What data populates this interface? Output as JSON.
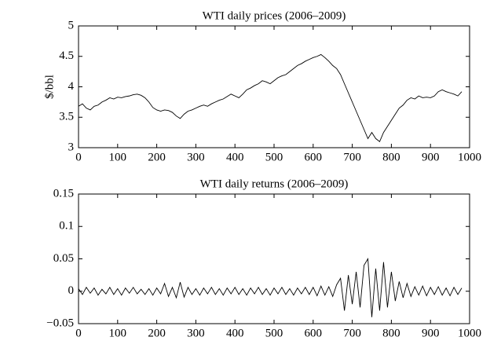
{
  "chart_data": [
    {
      "type": "line",
      "title": "WTI daily prices (2006–2009)",
      "ylabel": "$/bbl",
      "color": "#000000",
      "x": [
        0,
        10,
        20,
        30,
        40,
        50,
        60,
        70,
        80,
        90,
        100,
        110,
        120,
        130,
        140,
        150,
        160,
        170,
        180,
        190,
        200,
        210,
        220,
        230,
        240,
        250,
        260,
        270,
        280,
        290,
        300,
        310,
        320,
        330,
        340,
        350,
        360,
        370,
        380,
        390,
        400,
        410,
        420,
        430,
        440,
        450,
        460,
        470,
        480,
        490,
        500,
        510,
        520,
        530,
        540,
        550,
        560,
        570,
        580,
        590,
        600,
        610,
        620,
        630,
        640,
        650,
        660,
        670,
        680,
        690,
        700,
        710,
        720,
        730,
        740,
        750,
        760,
        770,
        780,
        790,
        800,
        810,
        820,
        830,
        840,
        850,
        860,
        870,
        880,
        890,
        900,
        910,
        920,
        930,
        940,
        950,
        960,
        970,
        980
      ],
      "values": [
        3.68,
        3.72,
        3.65,
        3.62,
        3.68,
        3.7,
        3.75,
        3.78,
        3.82,
        3.8,
        3.83,
        3.82,
        3.84,
        3.85,
        3.87,
        3.88,
        3.86,
        3.82,
        3.75,
        3.66,
        3.62,
        3.6,
        3.62,
        3.61,
        3.58,
        3.52,
        3.48,
        3.55,
        3.6,
        3.62,
        3.65,
        3.68,
        3.7,
        3.68,
        3.72,
        3.75,
        3.78,
        3.8,
        3.84,
        3.88,
        3.85,
        3.82,
        3.88,
        3.95,
        3.98,
        4.02,
        4.05,
        4.1,
        4.08,
        4.05,
        4.1,
        4.15,
        4.18,
        4.2,
        4.25,
        4.3,
        4.35,
        4.38,
        4.42,
        4.45,
        4.48,
        4.5,
        4.53,
        4.48,
        4.42,
        4.35,
        4.3,
        4.2,
        4.05,
        3.9,
        3.75,
        3.6,
        3.45,
        3.3,
        3.15,
        3.25,
        3.15,
        3.1,
        3.25,
        3.35,
        3.45,
        3.55,
        3.65,
        3.7,
        3.78,
        3.82,
        3.8,
        3.85,
        3.82,
        3.83,
        3.82,
        3.85,
        3.92,
        3.95,
        3.92,
        3.9,
        3.88,
        3.85,
        3.92
      ],
      "xlim": [
        0,
        1000
      ],
      "xticks": [
        0,
        100,
        200,
        300,
        400,
        500,
        600,
        700,
        800,
        900,
        1000
      ],
      "ylim": [
        3,
        5
      ],
      "yticks": [
        3,
        3.5,
        4,
        4.5,
        5
      ]
    },
    {
      "type": "line",
      "title": "WTI daily returns (2006–2009)",
      "color": "#000000",
      "x": [
        0,
        10,
        20,
        30,
        40,
        50,
        60,
        70,
        80,
        90,
        100,
        110,
        120,
        130,
        140,
        150,
        160,
        170,
        180,
        190,
        200,
        210,
        220,
        230,
        240,
        250,
        260,
        270,
        280,
        290,
        300,
        310,
        320,
        330,
        340,
        350,
        360,
        370,
        380,
        390,
        400,
        410,
        420,
        430,
        440,
        450,
        460,
        470,
        480,
        490,
        500,
        510,
        520,
        530,
        540,
        550,
        560,
        570,
        580,
        590,
        600,
        610,
        620,
        630,
        640,
        650,
        660,
        670,
        680,
        690,
        700,
        710,
        720,
        730,
        740,
        750,
        760,
        770,
        780,
        790,
        800,
        810,
        820,
        830,
        840,
        850,
        860,
        870,
        880,
        890,
        900,
        910,
        920,
        930,
        940,
        950,
        960,
        970,
        980
      ],
      "values": [
        0.004,
        -0.005,
        0.006,
        -0.003,
        0.005,
        -0.006,
        0.003,
        -0.004,
        0.006,
        -0.005,
        0.004,
        -0.006,
        0.005,
        -0.003,
        0.006,
        -0.004,
        0.003,
        -0.005,
        0.004,
        -0.006,
        0.005,
        -0.004,
        0.012,
        -0.008,
        0.006,
        -0.01,
        0.014,
        -0.009,
        0.006,
        -0.005,
        0.004,
        -0.006,
        0.005,
        -0.004,
        0.006,
        -0.005,
        0.004,
        -0.006,
        0.005,
        -0.004,
        0.006,
        -0.005,
        0.004,
        -0.006,
        0.005,
        -0.004,
        0.006,
        -0.005,
        0.004,
        -0.006,
        0.005,
        -0.004,
        0.006,
        -0.005,
        0.004,
        -0.006,
        0.005,
        -0.004,
        0.006,
        -0.005,
        0.006,
        -0.007,
        0.008,
        -0.006,
        0.007,
        -0.008,
        0.01,
        0.02,
        -0.03,
        0.025,
        -0.02,
        0.03,
        -0.025,
        0.04,
        0.05,
        -0.04,
        0.035,
        -0.03,
        0.045,
        -0.025,
        0.03,
        -0.015,
        0.015,
        -0.01,
        0.012,
        -0.008,
        0.007,
        -0.006,
        0.008,
        -0.007,
        0.006,
        -0.005,
        0.007,
        -0.006,
        0.005,
        -0.007,
        0.006,
        -0.005,
        0.005
      ],
      "xlim": [
        0,
        1000
      ],
      "xticks": [
        0,
        100,
        200,
        300,
        400,
        500,
        600,
        700,
        800,
        900,
        1000
      ],
      "ylim": [
        -0.05,
        0.15
      ],
      "yticks": [
        {
          "value": -0.05,
          "label": "−0.05"
        },
        0,
        0.05,
        0.1,
        0.15
      ]
    }
  ]
}
